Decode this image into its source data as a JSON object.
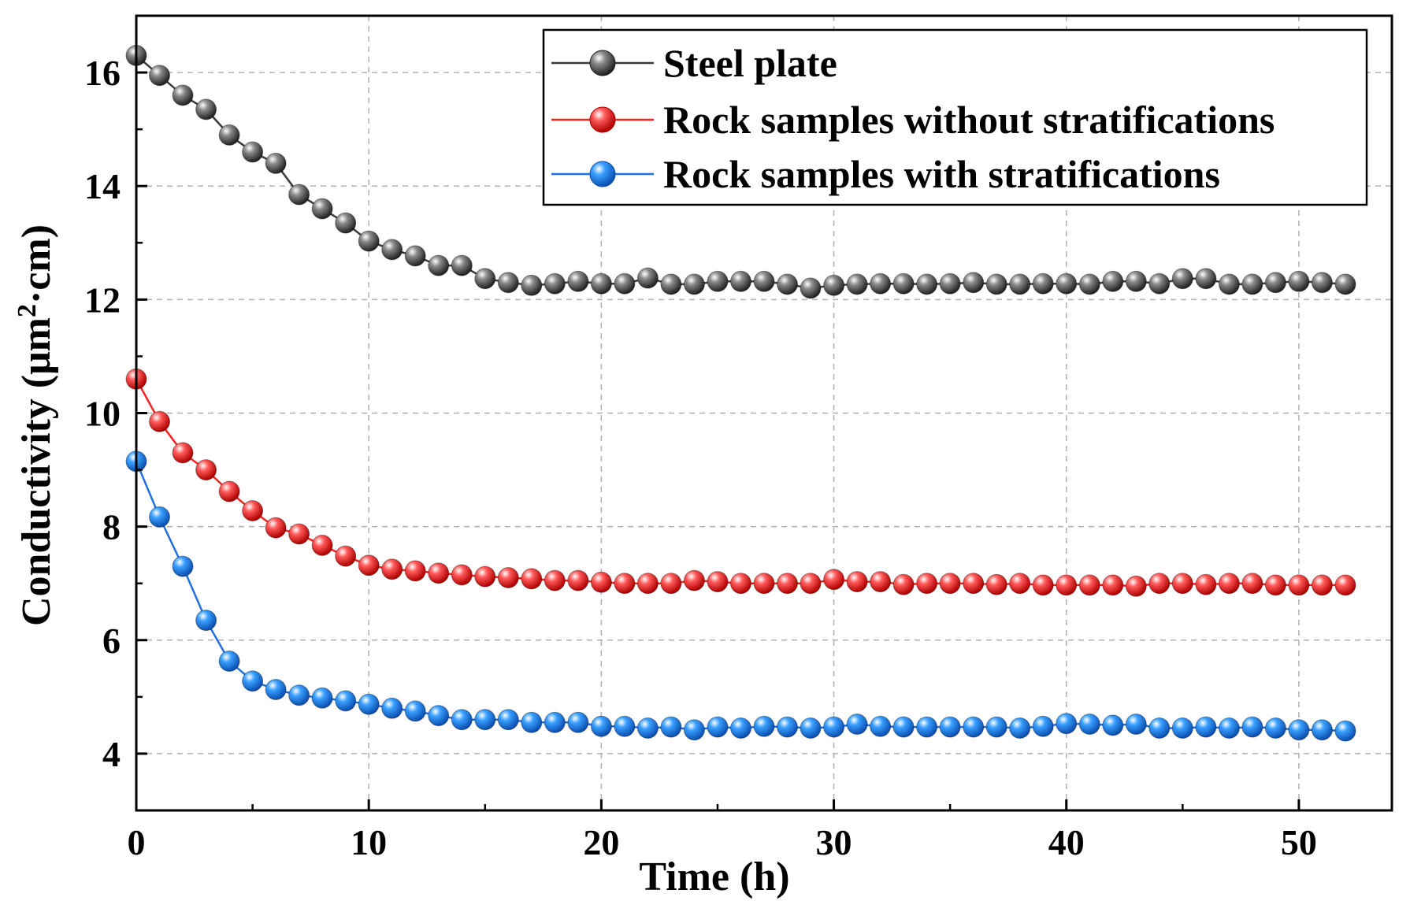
{
  "chart_data": {
    "type": "line",
    "title": "",
    "xlabel": "Time (h)",
    "ylabel_prefix": "Conductivity (μm",
    "ylabel_sup": "2",
    "ylabel_suffix": "·cm)",
    "xlim": [
      0,
      54
    ],
    "ylim": [
      3,
      17
    ],
    "x_ticks": [
      0,
      10,
      20,
      30,
      40,
      50
    ],
    "x_tick_labels": [
      "0",
      "10",
      "20",
      "30",
      "40",
      "50"
    ],
    "y_ticks": [
      4,
      6,
      8,
      10,
      12,
      14,
      16
    ],
    "y_tick_labels": [
      "4",
      "6",
      "8",
      "10",
      "12",
      "14",
      "16"
    ],
    "grid": true,
    "legend_position": "top-right",
    "x": [
      0,
      1,
      2,
      3,
      4,
      5,
      6,
      7,
      8,
      9,
      10,
      11,
      12,
      13,
      14,
      15,
      16,
      17,
      18,
      19,
      20,
      21,
      22,
      23,
      24,
      25,
      26,
      27,
      28,
      29,
      30,
      31,
      32,
      33,
      34,
      35,
      36,
      37,
      38,
      39,
      40,
      41,
      42,
      43,
      44,
      45,
      46,
      47,
      48,
      49,
      50,
      51,
      52
    ],
    "series": [
      {
        "name": "Steel plate",
        "color": "#555555",
        "line_color": "#3a3a3a",
        "values": [
          16.3,
          15.95,
          15.6,
          15.35,
          14.9,
          14.6,
          14.4,
          13.85,
          13.6,
          13.35,
          13.03,
          12.88,
          12.77,
          12.6,
          12.6,
          12.37,
          12.3,
          12.25,
          12.28,
          12.32,
          12.28,
          12.28,
          12.38,
          12.27,
          12.27,
          12.32,
          12.32,
          12.32,
          12.27,
          12.2,
          12.25,
          12.27,
          12.28,
          12.28,
          12.27,
          12.28,
          12.3,
          12.27,
          12.27,
          12.28,
          12.28,
          12.27,
          12.32,
          12.32,
          12.28,
          12.37,
          12.37,
          12.27,
          12.27,
          12.3,
          12.32,
          12.3,
          12.27
        ]
      },
      {
        "name": "Rock samples without stratifications",
        "color": "#ff3030",
        "line_color": "#ff2020",
        "values": [
          10.6,
          9.85,
          9.3,
          9.0,
          8.62,
          8.28,
          7.98,
          7.87,
          7.67,
          7.48,
          7.32,
          7.25,
          7.22,
          7.18,
          7.15,
          7.12,
          7.1,
          7.08,
          7.05,
          7.05,
          7.02,
          7.0,
          7.0,
          7.0,
          7.05,
          7.03,
          7.0,
          7.0,
          7.0,
          7.0,
          7.07,
          7.03,
          7.03,
          6.98,
          7.0,
          7.0,
          7.0,
          6.98,
          7.0,
          6.97,
          6.97,
          6.97,
          6.97,
          6.95,
          7.0,
          7.0,
          6.98,
          7.0,
          7.0,
          6.97,
          6.97,
          6.97,
          6.97
        ]
      },
      {
        "name": "Rock samples with stratifications",
        "color": "#1f8ef1",
        "line_color": "#1f6fe0",
        "values": [
          9.15,
          8.17,
          7.3,
          6.35,
          5.63,
          5.28,
          5.13,
          5.03,
          4.98,
          4.93,
          4.87,
          4.8,
          4.75,
          4.67,
          4.6,
          4.6,
          4.6,
          4.55,
          4.55,
          4.55,
          4.48,
          4.48,
          4.45,
          4.47,
          4.42,
          4.47,
          4.45,
          4.48,
          4.47,
          4.45,
          4.47,
          4.52,
          4.48,
          4.47,
          4.47,
          4.47,
          4.47,
          4.47,
          4.45,
          4.48,
          4.53,
          4.52,
          4.5,
          4.52,
          4.45,
          4.45,
          4.47,
          4.45,
          4.47,
          4.45,
          4.42,
          4.42,
          4.4
        ]
      }
    ]
  }
}
